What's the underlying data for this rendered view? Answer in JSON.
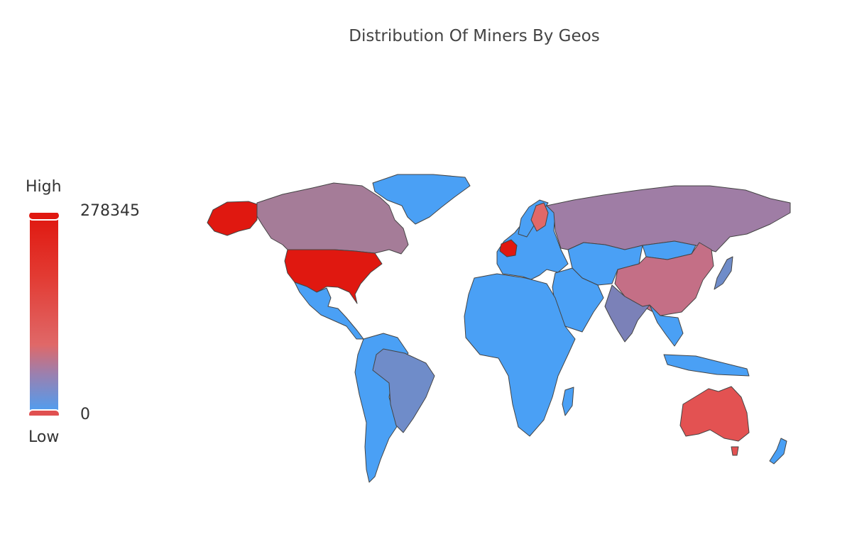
{
  "title": "Distribution Of Miners By Geos",
  "visual_map": {
    "high_label": "High",
    "low_label": "Low",
    "max_value": "278345",
    "min_value": "0",
    "colors": [
      "#4aa0f5",
      "#e06868",
      "#e01810"
    ]
  },
  "chart_data": {
    "type": "choropleth",
    "title": "Distribution Of Miners By Geos",
    "range": [
      0,
      278345
    ],
    "regions": [
      {
        "name": "United States",
        "level": "highest"
      },
      {
        "name": "Germany",
        "level": "very high"
      },
      {
        "name": "Finland",
        "level": "high"
      },
      {
        "name": "Australia",
        "level": "high"
      },
      {
        "name": "China",
        "level": "medium-high"
      },
      {
        "name": "Canada",
        "level": "medium"
      },
      {
        "name": "Russia",
        "level": "medium"
      },
      {
        "name": "India",
        "level": "medium-low"
      },
      {
        "name": "Brazil",
        "level": "low-medium"
      },
      {
        "name": "Japan",
        "level": "low-medium"
      },
      {
        "name": "Other countries",
        "level": "low"
      }
    ]
  }
}
